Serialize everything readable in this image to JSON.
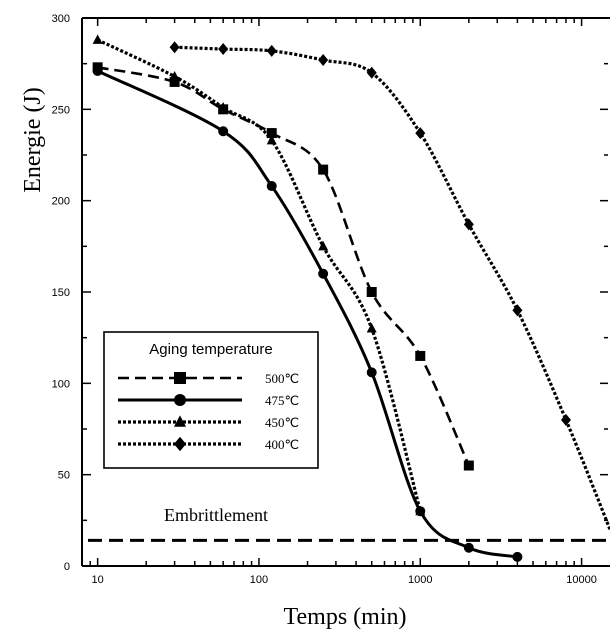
{
  "chart_data": {
    "type": "line",
    "title": "",
    "xlabel": "Temps (min)",
    "ylabel": "Energie (J)",
    "xscale": "log",
    "xlim": [
      8,
      15000
    ],
    "ylim": [
      0,
      300
    ],
    "xticks": [
      {
        "value": 10,
        "label": "10"
      },
      {
        "value": 100,
        "label": "100"
      },
      {
        "value": 1000,
        "label": "1000"
      },
      {
        "value": 10000,
        "label": "10000"
      }
    ],
    "yticks": [
      {
        "value": 0,
        "label": "0"
      },
      {
        "value": 50,
        "label": "50"
      },
      {
        "value": 100,
        "label": "100"
      },
      {
        "value": 150,
        "label": "150"
      },
      {
        "value": 200,
        "label": "200"
      },
      {
        "value": 250,
        "label": "250"
      },
      {
        "value": 300,
        "label": "300"
      }
    ],
    "grid": false,
    "legend": {
      "title": "Aging temperature",
      "position": "lower-left"
    },
    "series": [
      {
        "name": "500℃",
        "marker": "square",
        "line": "dashed",
        "points": [
          [
            10,
            273
          ],
          [
            30,
            265
          ],
          [
            60,
            250
          ],
          [
            120,
            237
          ],
          [
            250,
            217
          ],
          [
            500,
            150
          ],
          [
            1000,
            115
          ],
          [
            2000,
            55
          ]
        ]
      },
      {
        "name": "475℃",
        "marker": "circle",
        "line": "solid",
        "points": [
          [
            10,
            271
          ],
          [
            60,
            238
          ],
          [
            120,
            208
          ],
          [
            250,
            160
          ],
          [
            500,
            106
          ],
          [
            1000,
            30
          ],
          [
            2000,
            10
          ],
          [
            4000,
            5
          ]
        ]
      },
      {
        "name": "450℃",
        "marker": "triangle",
        "line": "dotted",
        "points": [
          [
            10,
            288
          ],
          [
            30,
            268
          ],
          [
            60,
            251
          ],
          [
            120,
            233
          ],
          [
            250,
            175
          ],
          [
            500,
            130
          ],
          [
            1000,
            30
          ]
        ]
      },
      {
        "name": "400℃",
        "marker": "diamond",
        "line": "dotted",
        "points": [
          [
            30,
            284
          ],
          [
            60,
            283
          ],
          [
            120,
            282
          ],
          [
            250,
            277
          ],
          [
            500,
            270
          ],
          [
            1000,
            237
          ],
          [
            2000,
            187
          ],
          [
            4000,
            140
          ],
          [
            8000,
            80
          ],
          [
            15000,
            20
          ]
        ]
      }
    ],
    "threshold": {
      "value": 14,
      "line": "dashed",
      "label": "Embrittlement"
    }
  }
}
